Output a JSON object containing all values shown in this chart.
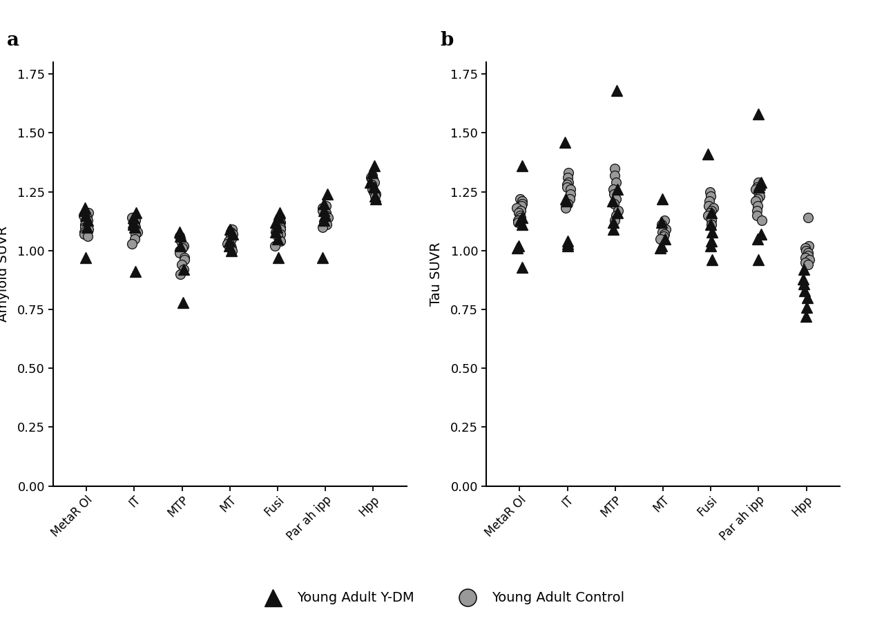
{
  "categories": [
    "MetaR OI",
    "IT",
    "MTP",
    "MT",
    "Fusi",
    "Par ah ipp",
    "Hpp"
  ],
  "panel_a_label": "a",
  "panel_b_label": "b",
  "ylabel_a": "Amyloid SUVR",
  "ylabel_b": "Tau SUVR",
  "ylim": [
    0.0,
    1.8
  ],
  "yticks": [
    0.0,
    0.25,
    0.5,
    0.75,
    1.0,
    1.25,
    1.5,
    1.75
  ],
  "legend_triangle_label": "Young Adult Y-DM",
  "legend_circle_label": "Young Adult Control",
  "triangle_color": "#111111",
  "circle_color": "#999999",
  "circle_edge_color": "#111111",
  "panel_a_triangles": {
    "MetaR OI": [
      1.18,
      1.17,
      1.15,
      1.13,
      1.1,
      0.97
    ],
    "IT": [
      1.16,
      1.14,
      1.12,
      1.11,
      1.1,
      0.91
    ],
    "MTP": [
      1.08,
      1.06,
      1.02,
      0.92,
      0.78
    ],
    "MT": [
      1.09,
      1.07,
      1.04,
      1.02,
      1.0
    ],
    "Fusi": [
      1.16,
      1.14,
      1.12,
      1.1,
      1.08,
      1.05,
      0.97
    ],
    "Par ah ipp": [
      1.24,
      1.2,
      1.17,
      1.15,
      1.13,
      0.97
    ],
    "Hpp": [
      1.36,
      1.33,
      1.29,
      1.27,
      1.23,
      1.22
    ]
  },
  "panel_a_circles": {
    "MetaR OI": [
      1.16,
      1.15,
      1.14,
      1.13,
      1.12,
      1.11,
      1.1,
      1.09,
      1.08,
      1.07,
      1.06
    ],
    "IT": [
      1.14,
      1.13,
      1.12,
      1.11,
      1.1,
      1.09,
      1.08,
      1.07,
      1.05,
      1.03
    ],
    "MTP": [
      1.06,
      1.04,
      1.02,
      1.01,
      1.0,
      0.99,
      0.97,
      0.96,
      0.94,
      0.92,
      0.9
    ],
    "MT": [
      1.09,
      1.08,
      1.07,
      1.06,
      1.05,
      1.04,
      1.03,
      1.02,
      1.01,
      1.0
    ],
    "Fusi": [
      1.14,
      1.13,
      1.12,
      1.11,
      1.1,
      1.09,
      1.08,
      1.07,
      1.06,
      1.04,
      1.02
    ],
    "Par ah ipp": [
      1.19,
      1.18,
      1.17,
      1.16,
      1.15,
      1.14,
      1.13,
      1.12,
      1.11,
      1.1
    ],
    "Hpp": [
      1.32,
      1.31,
      1.3,
      1.29,
      1.28,
      1.27,
      1.26,
      1.25,
      1.24,
      1.23
    ]
  },
  "panel_b_triangles": {
    "MetaR OI": [
      1.36,
      1.14,
      1.13,
      1.11,
      1.02,
      1.01,
      0.93
    ],
    "IT": [
      1.46,
      1.22,
      1.21,
      1.04,
      1.03,
      1.02
    ],
    "MTP": [
      1.68,
      1.26,
      1.21,
      1.16,
      1.12,
      1.09
    ],
    "MT": [
      1.22,
      1.12,
      1.05,
      1.02,
      1.01
    ],
    "Fusi": [
      1.41,
      1.16,
      1.11,
      1.08,
      1.04,
      1.02,
      0.96
    ],
    "Par ah ipp": [
      1.58,
      1.29,
      1.28,
      1.27,
      1.07,
      1.05,
      0.96
    ],
    "Hpp": [
      0.92,
      0.88,
      0.86,
      0.83,
      0.8,
      0.76,
      0.72
    ]
  },
  "panel_b_circles": {
    "MetaR OI": [
      1.22,
      1.21,
      1.2,
      1.19,
      1.18,
      1.17,
      1.16,
      1.15,
      1.14,
      1.13,
      1.12
    ],
    "IT": [
      1.33,
      1.31,
      1.29,
      1.28,
      1.27,
      1.26,
      1.24,
      1.22,
      1.2,
      1.18
    ],
    "MTP": [
      1.35,
      1.32,
      1.29,
      1.26,
      1.24,
      1.22,
      1.2,
      1.17,
      1.15,
      1.13
    ],
    "MT": [
      1.13,
      1.11,
      1.09,
      1.08,
      1.07,
      1.06,
      1.05
    ],
    "Fusi": [
      1.25,
      1.23,
      1.21,
      1.19,
      1.18,
      1.17,
      1.16,
      1.15,
      1.13,
      1.11
    ],
    "Par ah ipp": [
      1.29,
      1.27,
      1.26,
      1.25,
      1.23,
      1.22,
      1.21,
      1.19,
      1.17,
      1.15,
      1.13
    ],
    "Hpp": [
      1.14,
      1.02,
      1.01,
      1.0,
      0.99,
      0.98,
      0.97,
      0.96,
      0.95,
      0.94
    ]
  }
}
